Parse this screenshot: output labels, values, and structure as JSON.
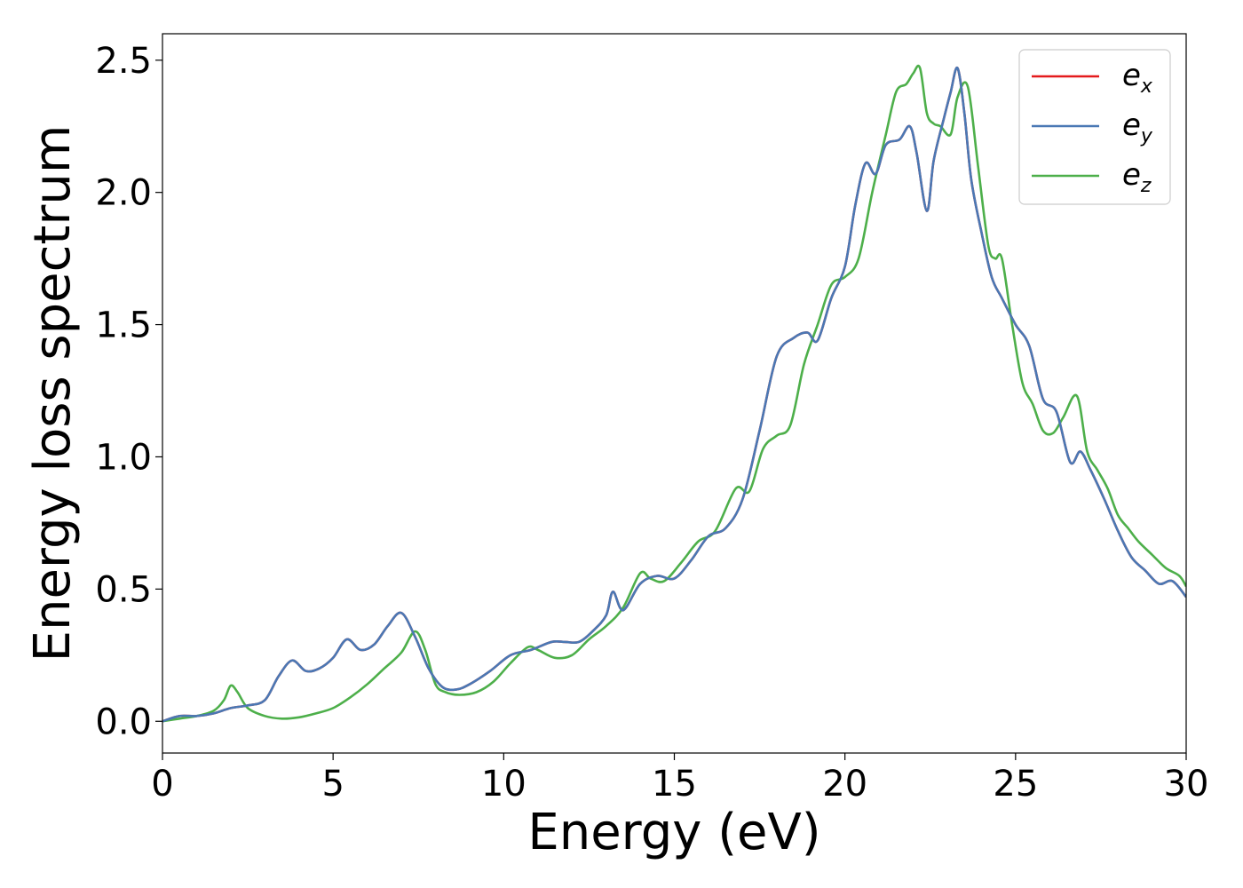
{
  "chart_data": {
    "type": "line",
    "xlabel": "Energy (eV)",
    "ylabel": "Energy loss spectrum",
    "xlim": [
      0,
      30
    ],
    "ylim": [
      -0.12,
      2.6
    ],
    "xticks": [
      0,
      5,
      10,
      15,
      20,
      25,
      30
    ],
    "xtick_labels": [
      "0",
      "5",
      "10",
      "15",
      "20",
      "25",
      "30"
    ],
    "yticks": [
      0.0,
      0.5,
      1.0,
      1.5,
      2.0,
      2.5
    ],
    "ytick_labels": [
      "0.0",
      "0.5",
      "1.0",
      "1.5",
      "2.0",
      "2.5"
    ],
    "grid": false,
    "legend_position": "top-right",
    "series": [
      {
        "name": "e_x",
        "label_base": "e",
        "label_sub": "x",
        "color": "#e41a1c",
        "x": [
          0,
          0.5,
          1,
          1.5,
          2,
          2.5,
          3,
          3.4,
          3.8,
          4.2,
          4.6,
          5.0,
          5.4,
          5.8,
          6.2,
          6.6,
          7.0,
          7.4,
          7.8,
          8.2,
          8.6,
          9.0,
          9.6,
          10.2,
          10.8,
          11.4,
          11.8,
          12.2,
          12.6,
          13.0,
          13.2,
          13.5,
          14.0,
          14.5,
          15.0,
          15.5,
          16.0,
          16.5,
          17.0,
          17.5,
          18.0,
          18.5,
          18.9,
          19.2,
          19.6,
          20.0,
          20.3,
          20.6,
          20.9,
          21.2,
          21.6,
          21.9,
          22.1,
          22.4,
          22.6,
          22.9,
          23.1,
          23.3,
          23.5,
          23.7,
          24.0,
          24.3,
          24.6,
          25.0,
          25.4,
          25.8,
          26.2,
          26.6,
          26.9,
          27.2,
          27.6,
          28.0,
          28.4,
          28.8,
          29.2,
          29.6,
          30.0
        ],
        "y": [
          0.0,
          0.02,
          0.02,
          0.03,
          0.05,
          0.06,
          0.08,
          0.17,
          0.23,
          0.19,
          0.2,
          0.24,
          0.31,
          0.27,
          0.29,
          0.36,
          0.41,
          0.32,
          0.2,
          0.13,
          0.12,
          0.14,
          0.19,
          0.25,
          0.27,
          0.3,
          0.3,
          0.3,
          0.34,
          0.4,
          0.49,
          0.42,
          0.52,
          0.55,
          0.54,
          0.61,
          0.7,
          0.73,
          0.84,
          1.1,
          1.38,
          1.45,
          1.47,
          1.44,
          1.6,
          1.72,
          1.95,
          2.11,
          2.07,
          2.18,
          2.2,
          2.25,
          2.15,
          1.93,
          2.12,
          2.28,
          2.38,
          2.47,
          2.3,
          2.05,
          1.85,
          1.68,
          1.6,
          1.5,
          1.42,
          1.22,
          1.17,
          0.98,
          1.02,
          0.95,
          0.84,
          0.72,
          0.62,
          0.57,
          0.52,
          0.53,
          0.47
        ]
      },
      {
        "name": "e_y",
        "label_base": "e",
        "label_sub": "y",
        "color": "#4a78b4",
        "x": [
          0,
          0.5,
          1,
          1.5,
          2,
          2.5,
          3,
          3.4,
          3.8,
          4.2,
          4.6,
          5.0,
          5.4,
          5.8,
          6.2,
          6.6,
          7.0,
          7.4,
          7.8,
          8.2,
          8.6,
          9.0,
          9.6,
          10.2,
          10.8,
          11.4,
          11.8,
          12.2,
          12.6,
          13.0,
          13.2,
          13.5,
          14.0,
          14.5,
          15.0,
          15.5,
          16.0,
          16.5,
          17.0,
          17.5,
          18.0,
          18.5,
          18.9,
          19.2,
          19.6,
          20.0,
          20.3,
          20.6,
          20.9,
          21.2,
          21.6,
          21.9,
          22.1,
          22.4,
          22.6,
          22.9,
          23.1,
          23.3,
          23.5,
          23.7,
          24.0,
          24.3,
          24.6,
          25.0,
          25.4,
          25.8,
          26.2,
          26.6,
          26.9,
          27.2,
          27.6,
          28.0,
          28.4,
          28.8,
          29.2,
          29.6,
          30.0
        ],
        "y": [
          0.0,
          0.02,
          0.02,
          0.03,
          0.05,
          0.06,
          0.08,
          0.17,
          0.23,
          0.19,
          0.2,
          0.24,
          0.31,
          0.27,
          0.29,
          0.36,
          0.41,
          0.32,
          0.2,
          0.13,
          0.12,
          0.14,
          0.19,
          0.25,
          0.27,
          0.3,
          0.3,
          0.3,
          0.34,
          0.4,
          0.49,
          0.42,
          0.52,
          0.55,
          0.54,
          0.61,
          0.7,
          0.73,
          0.84,
          1.1,
          1.38,
          1.45,
          1.47,
          1.44,
          1.6,
          1.72,
          1.95,
          2.11,
          2.07,
          2.18,
          2.2,
          2.25,
          2.15,
          1.93,
          2.12,
          2.28,
          2.38,
          2.47,
          2.3,
          2.05,
          1.85,
          1.68,
          1.6,
          1.5,
          1.42,
          1.22,
          1.17,
          0.98,
          1.02,
          0.95,
          0.84,
          0.72,
          0.62,
          0.57,
          0.52,
          0.53,
          0.47
        ]
      },
      {
        "name": "e_z",
        "label_base": "e",
        "label_sub": "z",
        "color": "#4daf4a",
        "x": [
          0,
          0.5,
          1,
          1.5,
          1.8,
          2.0,
          2.2,
          2.5,
          3.0,
          3.5,
          4.0,
          4.5,
          5.0,
          5.5,
          6.0,
          6.5,
          7.0,
          7.4,
          7.7,
          8.0,
          8.3,
          8.7,
          9.2,
          9.7,
          10.2,
          10.7,
          11.0,
          11.5,
          12.0,
          12.5,
          13.0,
          13.5,
          14.0,
          14.3,
          14.7,
          15.2,
          15.7,
          16.2,
          16.8,
          17.2,
          17.6,
          18.0,
          18.4,
          18.8,
          19.2,
          19.6,
          20.0,
          20.4,
          20.8,
          21.2,
          21.5,
          21.8,
          22.0,
          22.2,
          22.4,
          22.6,
          22.8,
          23.1,
          23.3,
          23.6,
          23.9,
          24.2,
          24.4,
          24.6,
          24.9,
          25.2,
          25.5,
          25.8,
          26.1,
          26.4,
          26.8,
          27.1,
          27.4,
          27.7,
          28.0,
          28.3,
          28.6,
          29.0,
          29.4,
          29.8,
          30.0
        ],
        "y": [
          0.0,
          0.01,
          0.02,
          0.04,
          0.08,
          0.135,
          0.11,
          0.05,
          0.02,
          0.01,
          0.015,
          0.03,
          0.05,
          0.09,
          0.14,
          0.2,
          0.26,
          0.34,
          0.27,
          0.14,
          0.11,
          0.1,
          0.11,
          0.15,
          0.22,
          0.28,
          0.27,
          0.24,
          0.25,
          0.31,
          0.36,
          0.43,
          0.56,
          0.54,
          0.53,
          0.6,
          0.68,
          0.72,
          0.88,
          0.87,
          1.03,
          1.08,
          1.12,
          1.35,
          1.5,
          1.65,
          1.68,
          1.75,
          2.0,
          2.22,
          2.38,
          2.41,
          2.45,
          2.47,
          2.3,
          2.26,
          2.25,
          2.22,
          2.36,
          2.4,
          2.1,
          1.8,
          1.75,
          1.75,
          1.5,
          1.28,
          1.2,
          1.1,
          1.09,
          1.15,
          1.23,
          1.02,
          0.95,
          0.88,
          0.78,
          0.73,
          0.68,
          0.63,
          0.58,
          0.55,
          0.51
        ]
      }
    ]
  }
}
